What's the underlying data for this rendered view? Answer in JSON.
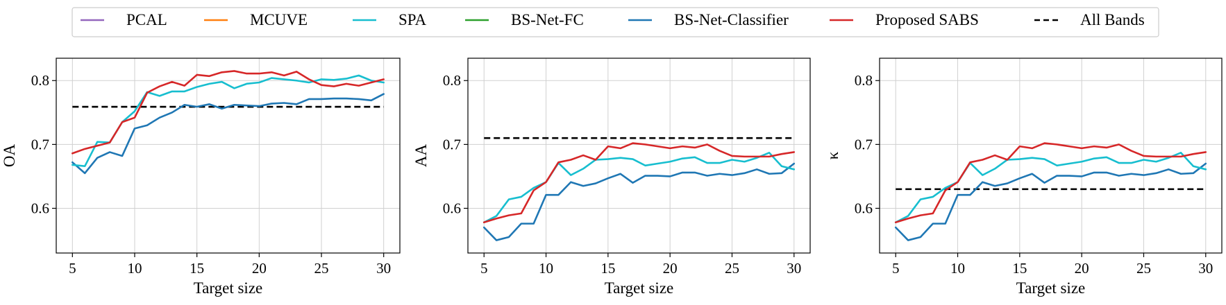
{
  "legend": {
    "placement": "top-center",
    "entries": [
      {
        "name": "PCAL",
        "color": "#9467bd",
        "dash": "solid"
      },
      {
        "name": "MCUVE",
        "color": "#ff7f0e",
        "dash": "solid"
      },
      {
        "name": "SPA",
        "color": "#17becf",
        "dash": "solid"
      },
      {
        "name": "BS-Net-FC",
        "color": "#2ca02c",
        "dash": "solid"
      },
      {
        "name": "BS-Net-Classifier",
        "color": "#1f77b4",
        "dash": "solid"
      },
      {
        "name": "Proposed SABS",
        "color": "#d62728",
        "dash": "solid"
      },
      {
        "name": "All Bands",
        "color": "#000000",
        "dash": "dashed"
      }
    ]
  },
  "chart_data": [
    {
      "type": "line",
      "xlabel": "Target size",
      "ylabel": "OA",
      "xlim": [
        3.7,
        31.3
      ],
      "ylim": [
        0.53,
        0.835
      ],
      "xticks": [
        5,
        10,
        15,
        20,
        25,
        30
      ],
      "yticks": [
        0.6,
        0.7,
        0.8
      ],
      "grid": true,
      "x": [
        5,
        6,
        7,
        8,
        9,
        10,
        11,
        12,
        13,
        14,
        15,
        16,
        17,
        18,
        19,
        20,
        21,
        22,
        23,
        24,
        25,
        26,
        27,
        28,
        29,
        30
      ],
      "series": [
        {
          "name": "SPA",
          "color": "#17becf",
          "values": [
            0.668,
            0.666,
            0.704,
            0.703,
            0.735,
            0.752,
            0.782,
            0.776,
            0.783,
            0.783,
            0.79,
            0.795,
            0.798,
            0.788,
            0.795,
            0.797,
            0.804,
            0.802,
            0.8,
            0.797,
            0.802,
            0.801,
            0.803,
            0.808,
            0.8,
            0.797
          ]
        },
        {
          "name": "BS-Net-Classifier",
          "color": "#1f77b4",
          "values": [
            0.672,
            0.655,
            0.679,
            0.688,
            0.682,
            0.725,
            0.73,
            0.742,
            0.75,
            0.762,
            0.759,
            0.763,
            0.756,
            0.762,
            0.761,
            0.76,
            0.764,
            0.765,
            0.763,
            0.771,
            0.771,
            0.772,
            0.772,
            0.771,
            0.769,
            0.779
          ]
        },
        {
          "name": "Proposed SABS",
          "color": "#d62728",
          "values": [
            0.686,
            0.693,
            0.698,
            0.703,
            0.735,
            0.742,
            0.781,
            0.791,
            0.798,
            0.792,
            0.809,
            0.807,
            0.813,
            0.815,
            0.811,
            0.811,
            0.813,
            0.808,
            0.814,
            0.802,
            0.793,
            0.791,
            0.795,
            0.792,
            0.797,
            0.802
          ]
        },
        {
          "name": "All Bands",
          "color": "#000000",
          "dashed": true,
          "values": [
            0.759,
            0.759,
            0.759,
            0.759,
            0.759,
            0.759,
            0.759,
            0.759,
            0.759,
            0.759,
            0.759,
            0.759,
            0.759,
            0.759,
            0.759,
            0.759,
            0.759,
            0.759,
            0.759,
            0.759,
            0.759,
            0.759,
            0.759,
            0.759,
            0.759,
            0.759
          ]
        }
      ]
    },
    {
      "type": "line",
      "xlabel": "Target size",
      "ylabel": "AA",
      "xlim": [
        3.7,
        31.3
      ],
      "ylim": [
        0.53,
        0.835
      ],
      "xticks": [
        5,
        10,
        15,
        20,
        25,
        30
      ],
      "yticks": [
        0.6,
        0.7,
        0.8
      ],
      "grid": true,
      "x": [
        5,
        6,
        7,
        8,
        9,
        10,
        11,
        12,
        13,
        14,
        15,
        16,
        17,
        18,
        19,
        20,
        21,
        22,
        23,
        24,
        25,
        26,
        27,
        28,
        29,
        30
      ],
      "series": [
        {
          "name": "SPA",
          "color": "#17becf",
          "values": [
            0.578,
            0.588,
            0.614,
            0.618,
            0.632,
            0.641,
            0.671,
            0.652,
            0.662,
            0.676,
            0.677,
            0.679,
            0.677,
            0.667,
            0.67,
            0.673,
            0.678,
            0.68,
            0.671,
            0.671,
            0.676,
            0.673,
            0.679,
            0.687,
            0.666,
            0.661
          ]
        },
        {
          "name": "BS-Net-Classifier",
          "color": "#1f77b4",
          "values": [
            0.57,
            0.55,
            0.555,
            0.576,
            0.576,
            0.621,
            0.621,
            0.641,
            0.635,
            0.639,
            0.647,
            0.654,
            0.64,
            0.651,
            0.651,
            0.65,
            0.656,
            0.656,
            0.651,
            0.654,
            0.652,
            0.655,
            0.661,
            0.654,
            0.655,
            0.67
          ]
        },
        {
          "name": "Proposed SABS",
          "color": "#d62728",
          "values": [
            0.578,
            0.584,
            0.589,
            0.592,
            0.628,
            0.641,
            0.672,
            0.676,
            0.683,
            0.676,
            0.697,
            0.694,
            0.702,
            0.7,
            0.697,
            0.694,
            0.697,
            0.695,
            0.7,
            0.69,
            0.682,
            0.681,
            0.681,
            0.681,
            0.685,
            0.688
          ]
        },
        {
          "name": "All Bands",
          "color": "#000000",
          "dashed": true,
          "values": [
            0.71,
            0.71,
            0.71,
            0.71,
            0.71,
            0.71,
            0.71,
            0.71,
            0.71,
            0.71,
            0.71,
            0.71,
            0.71,
            0.71,
            0.71,
            0.71,
            0.71,
            0.71,
            0.71,
            0.71,
            0.71,
            0.71,
            0.71,
            0.71,
            0.71,
            0.71
          ]
        }
      ]
    },
    {
      "type": "line",
      "xlabel": "Target size",
      "ylabel": "κ",
      "xlim": [
        3.7,
        31.3
      ],
      "ylim": [
        0.53,
        0.835
      ],
      "xticks": [
        5,
        10,
        15,
        20,
        25,
        30
      ],
      "yticks": [
        0.6,
        0.7,
        0.8
      ],
      "grid": true,
      "x": [
        5,
        6,
        7,
        8,
        9,
        10,
        11,
        12,
        13,
        14,
        15,
        16,
        17,
        18,
        19,
        20,
        21,
        22,
        23,
        24,
        25,
        26,
        27,
        28,
        29,
        30
      ],
      "series": [
        {
          "name": "SPA",
          "color": "#17becf",
          "values": [
            0.578,
            0.588,
            0.614,
            0.618,
            0.632,
            0.641,
            0.671,
            0.652,
            0.662,
            0.676,
            0.677,
            0.679,
            0.677,
            0.667,
            0.67,
            0.673,
            0.678,
            0.68,
            0.671,
            0.671,
            0.676,
            0.673,
            0.679,
            0.687,
            0.666,
            0.661
          ]
        },
        {
          "name": "BS-Net-Classifier",
          "color": "#1f77b4",
          "values": [
            0.57,
            0.55,
            0.555,
            0.576,
            0.576,
            0.621,
            0.621,
            0.641,
            0.635,
            0.639,
            0.647,
            0.654,
            0.64,
            0.651,
            0.651,
            0.65,
            0.656,
            0.656,
            0.651,
            0.654,
            0.652,
            0.655,
            0.661,
            0.654,
            0.655,
            0.67
          ]
        },
        {
          "name": "Proposed SABS",
          "color": "#d62728",
          "values": [
            0.578,
            0.584,
            0.589,
            0.592,
            0.628,
            0.641,
            0.672,
            0.676,
            0.683,
            0.676,
            0.697,
            0.694,
            0.702,
            0.7,
            0.697,
            0.694,
            0.697,
            0.695,
            0.7,
            0.69,
            0.682,
            0.681,
            0.681,
            0.681,
            0.685,
            0.688
          ]
        },
        {
          "name": "All Bands",
          "color": "#000000",
          "dashed": true,
          "values": [
            0.63,
            0.63,
            0.63,
            0.63,
            0.63,
            0.63,
            0.63,
            0.63,
            0.63,
            0.63,
            0.63,
            0.63,
            0.63,
            0.63,
            0.63,
            0.63,
            0.63,
            0.63,
            0.63,
            0.63,
            0.63,
            0.63,
            0.63,
            0.63,
            0.63,
            0.63
          ]
        }
      ]
    }
  ]
}
